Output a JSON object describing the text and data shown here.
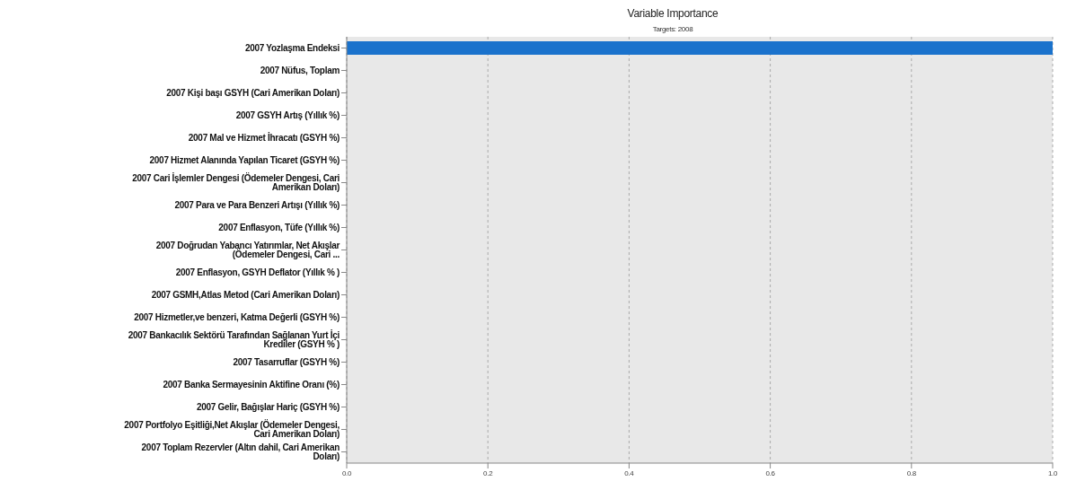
{
  "chart_data": {
    "type": "bar",
    "orientation": "horizontal",
    "title": "Variable Importance",
    "subtitle": "Targets: 2008",
    "categories": [
      "2007 Yozlaşma Endeksi",
      "2007 Nüfus, Toplam",
      "2007 Kişi başı GSYH (Cari Amerikan Doları)",
      "2007 GSYH Artış (Yıllık %)",
      "2007 Mal ve Hizmet İhracatı (GSYH %)",
      "2007 Hizmet Alanında Yapılan Ticaret (GSYH %)",
      "2007 Cari İşlemler Dengesi (Ödemeler Dengesi, Cari Amerikan Doları)",
      "2007 Para ve Para Benzeri Artışı (Yıllık %)",
      "2007 Enflasyon, Tüfe (Yıllık %)",
      "2007 Doğrudan Yabancı Yatırımlar, Net Akışlar (Ödemeler Dengesi, Cari ...",
      "2007 Enflasyon, GSYH Deflator (Yıllık % )",
      "2007 GSMH,Atlas Metod (Cari Amerikan Doları)",
      "2007 Hizmetler,ve benzeri, Katma Değerli (GSYH %)",
      "2007 Bankacılık Sektörü Tarafından Sağlanan Yurt İçi Krediler (GSYH % )",
      "2007 Tasarruflar (GSYH %)",
      "2007 Banka Sermayesinin Aktifine Oranı (%)",
      "2007 Gelir, Bağışlar Hariç (GSYH %)",
      "2007 Portfolyo Eşitliği,Net Akışlar (Ödemeler Dengesi, Cari Amerikan Doları)",
      "2007 Toplam Rezervler (Altın dahil, Cari Amerikan Doları)"
    ],
    "values": [
      1,
      0,
      0,
      0,
      0,
      0,
      0,
      0,
      0,
      0,
      0,
      0,
      0,
      0,
      0,
      0,
      0,
      0,
      0
    ],
    "color": "#1a72cc",
    "xlim": [
      0,
      1
    ],
    "xticks": [
      {
        "value": 0,
        "label": "0.0"
      },
      {
        "value": 0.2,
        "label": "0.2"
      },
      {
        "value": 0.4,
        "label": "0.4"
      },
      {
        "value": 0.6,
        "label": "0.6"
      },
      {
        "value": 0.8,
        "label": "0.8"
      },
      {
        "value": 1,
        "label": "1.0"
      }
    ],
    "grid": "x"
  }
}
